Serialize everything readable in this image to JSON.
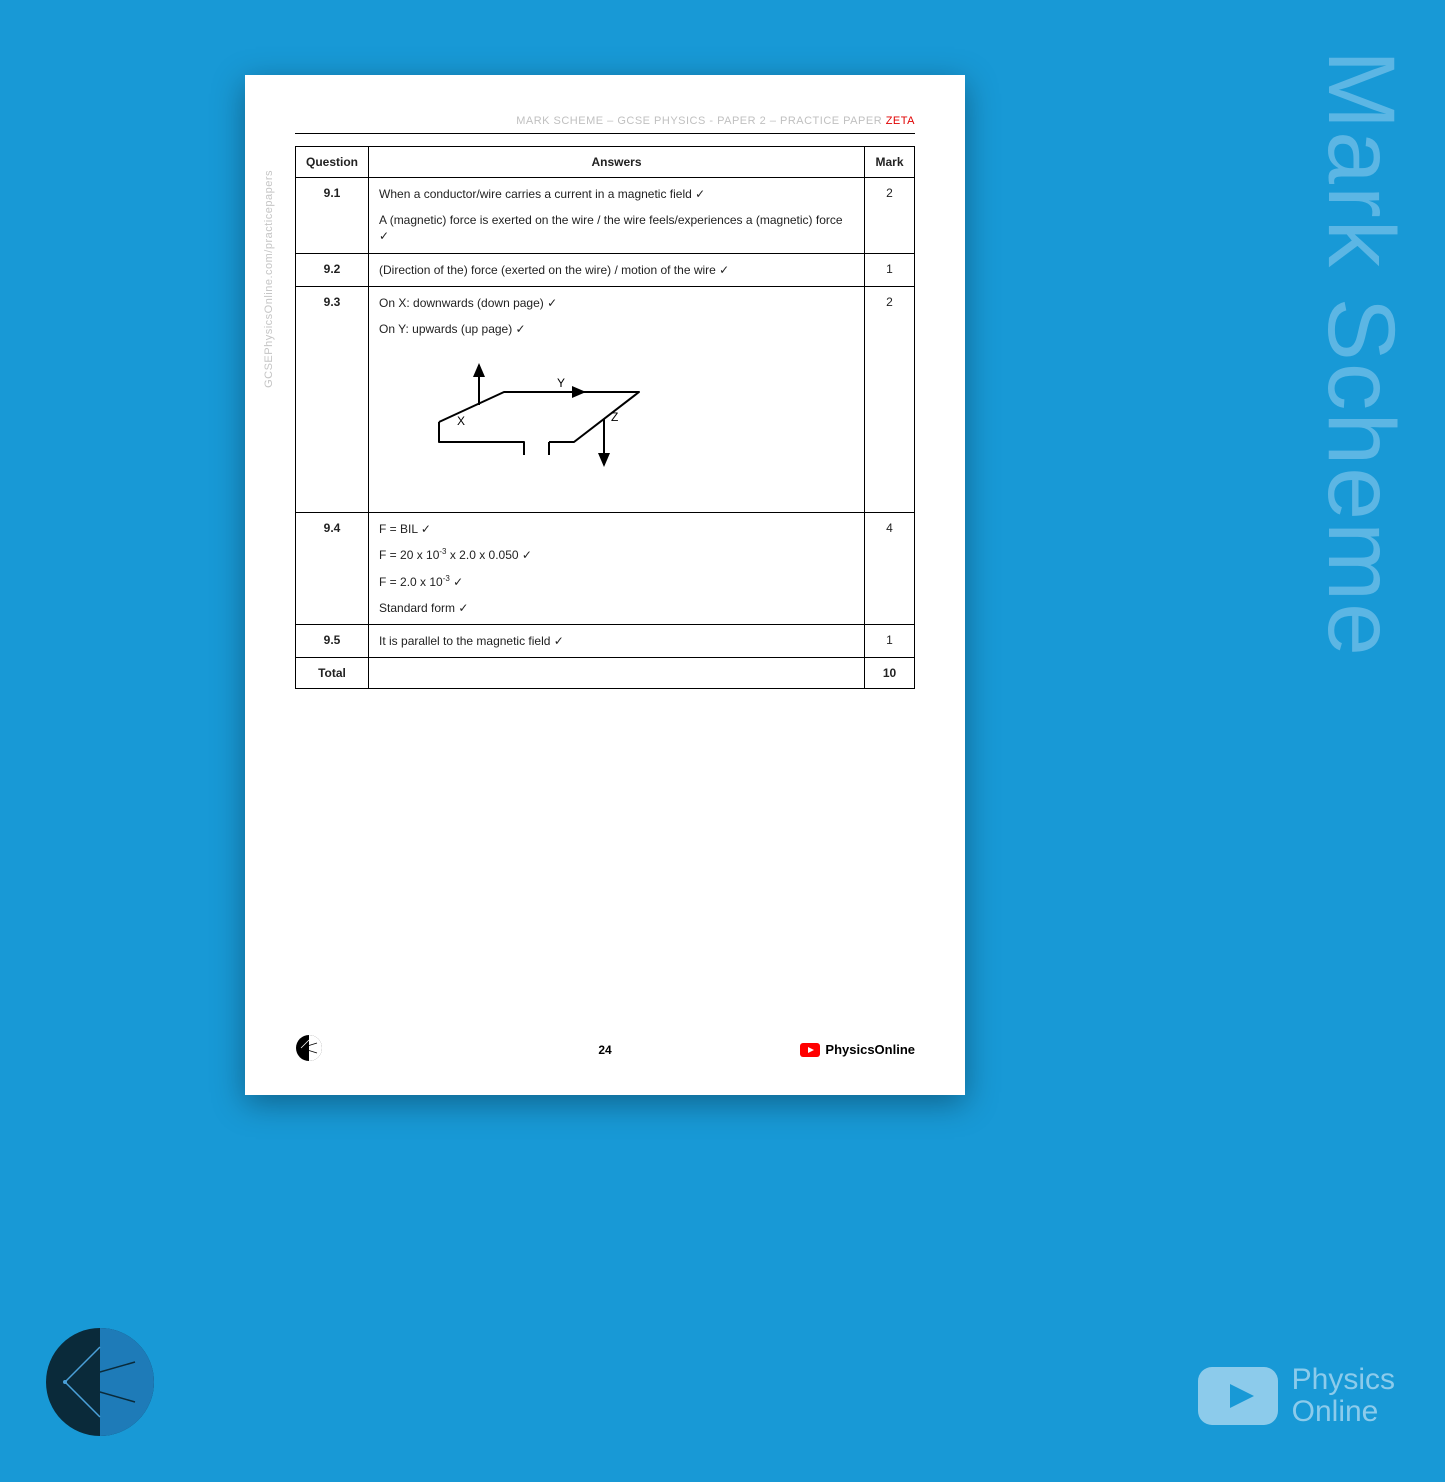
{
  "background_color": "#1899d6",
  "watermark": {
    "text": "Mark Scheme",
    "color": "#5cb6e4",
    "fontsize": 95
  },
  "page": {
    "header_main": "MARK SCHEME – GCSE PHYSICS - PAPER 2 – PRACTICE PAPER ",
    "header_red": "ZETA",
    "side_url": "GCSEPhysicsOnline.com/practicepapers",
    "page_number": "24",
    "youtube_label": "PhysicsOnline",
    "columns": {
      "question": "Question",
      "answers": "Answers",
      "mark": "Mark"
    },
    "rows": [
      {
        "q": "9.1",
        "mark": "2",
        "answers": [
          "When a conductor/wire carries a current in a magnetic field ✓",
          "A (magnetic) force is exerted on the wire / the wire feels/experiences a (magnetic) force ✓"
        ]
      },
      {
        "q": "9.2",
        "mark": "1",
        "answers": [
          "(Direction of the) force (exerted on the wire) / motion of the wire ✓"
        ]
      },
      {
        "q": "9.3",
        "mark": "2",
        "answers": [
          "On X: downwards (down page) ✓",
          "On Y: upwards (up page) ✓"
        ],
        "has_diagram": true,
        "diagram": {
          "labels": {
            "x": "X",
            "y": "Y",
            "z": "Z"
          },
          "line_color": "#000000",
          "line_width": 2
        }
      },
      {
        "q": "9.4",
        "mark": "4",
        "answers": [
          "F = BIL ✓",
          "F = 20 x 10<sup>-3</sup> x 2.0 x 0.050 ✓",
          "F = 2.0 x 10<sup>-3</sup> ✓",
          "Standard form ✓"
        ],
        "html": true
      },
      {
        "q": "9.5",
        "mark": "1",
        "answers": [
          "It is parallel to the magnetic field ✓"
        ]
      }
    ],
    "total": {
      "label": "Total",
      "mark": "10"
    }
  },
  "footer_brand": {
    "line1": "Physics",
    "line2": "Online",
    "color": "#8ccbeb"
  },
  "colors": {
    "page_bg": "#ffffff",
    "rule": "#000000",
    "header_grey": "#c0c0c0",
    "header_red": "#e00000",
    "side_grey": "#c5c5c5",
    "youtube_red": "#ff0000"
  }
}
